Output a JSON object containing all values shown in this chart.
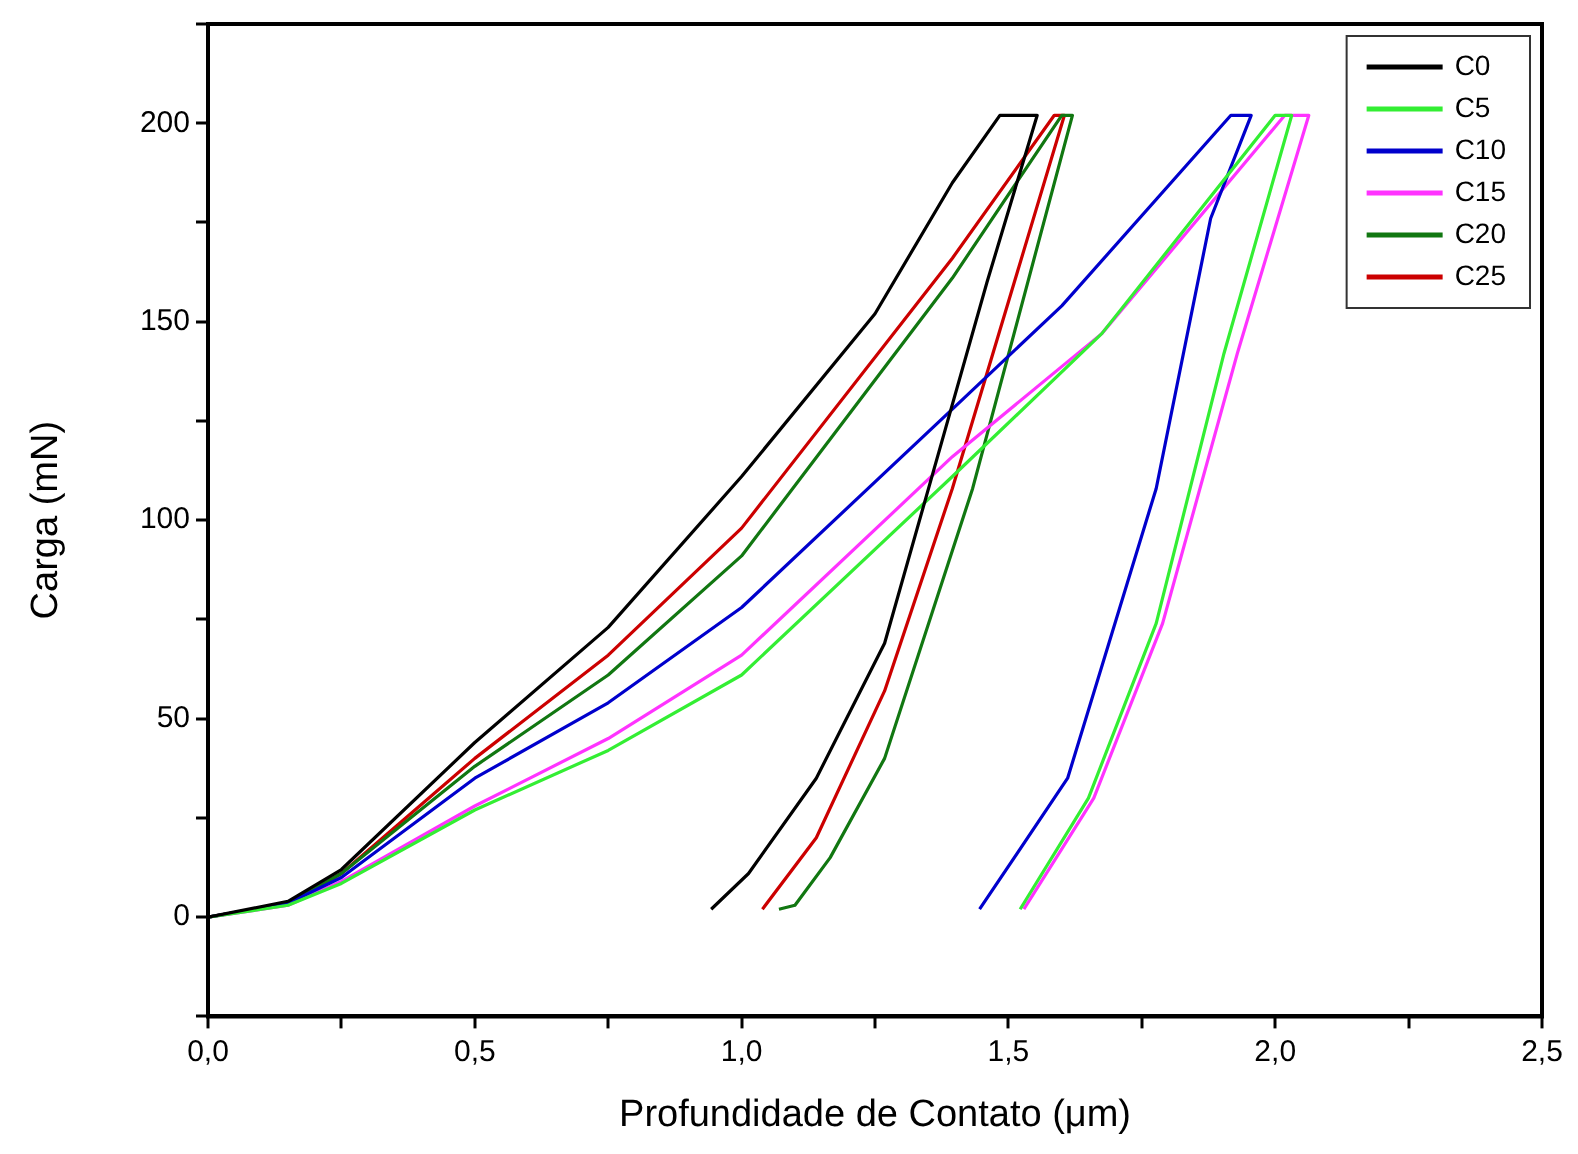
{
  "chart_data": {
    "type": "line",
    "xlabel": "Profundidade de Contato (μm)",
    "ylabel": "Carga (mN)",
    "xlim": [
      0,
      2.5
    ],
    "xticks": [
      {
        "value": 0,
        "label": "0,0"
      },
      {
        "value": 0.25,
        "label": null
      },
      {
        "value": 0.5,
        "label": "0,5"
      },
      {
        "value": 0.75,
        "label": null
      },
      {
        "value": 1,
        "label": "1,0"
      },
      {
        "value": 1.25,
        "label": null
      },
      {
        "value": 1.5,
        "label": "1,5"
      },
      {
        "value": 1.75,
        "label": null
      },
      {
        "value": 2,
        "label": "2,0"
      },
      {
        "value": 2.25,
        "label": null
      },
      {
        "value": 2.5,
        "label": "2,5"
      }
    ],
    "ylim": [
      -25,
      225
    ],
    "yticks": [
      {
        "value": -25,
        "label": null
      },
      0,
      {
        "value": 25,
        "label": null
      },
      50,
      {
        "value": 75,
        "label": null
      },
      100,
      {
        "value": 125,
        "label": null
      },
      150,
      {
        "value": 175,
        "label": null
      },
      200,
      {
        "value": 225,
        "label": null
      }
    ],
    "grid": false,
    "legend": "top right",
    "marker": "none",
    "series": [
      {
        "name": "C0",
        "color": "#000000",
        "x": [
          0,
          0.15,
          0.25,
          0.5,
          0.75,
          1.0,
          1.25,
          1.395,
          1.484,
          1.554,
          1.46,
          1.382,
          1.268,
          1.14,
          1.013,
          0.943
        ],
        "values": [
          0,
          4,
          12,
          44,
          73,
          111,
          152,
          185,
          202,
          202,
          160,
          123,
          69,
          35,
          11,
          2
        ]
      },
      {
        "name": "C5",
        "color": "#33ee33",
        "x": [
          0,
          0.15,
          0.25,
          0.5,
          0.75,
          1.0,
          1.395,
          1.675,
          2.0,
          2.031,
          1.904,
          1.777,
          1.65,
          1.522
        ],
        "values": [
          0,
          3,
          8.5,
          27,
          42,
          61,
          111,
          147,
          202,
          202,
          142,
          74,
          30,
          2
        ]
      },
      {
        "name": "C10",
        "color": "#0000cc",
        "x": [
          0,
          0.15,
          0.25,
          0.5,
          0.75,
          1.0,
          1.395,
          1.6,
          1.917,
          1.955,
          1.879,
          1.777,
          1.611,
          1.446
        ],
        "values": [
          0,
          3.5,
          10,
          35,
          54,
          78,
          128,
          154,
          202,
          202,
          176,
          108,
          35,
          2
        ]
      },
      {
        "name": "C15",
        "color": "#ff33ff",
        "x": [
          0,
          0.15,
          0.25,
          0.5,
          0.75,
          1.0,
          1.395,
          1.675,
          2.018,
          2.063,
          1.929,
          1.789,
          1.66,
          1.529
        ],
        "values": [
          0,
          3,
          9,
          28,
          45,
          66,
          116,
          147,
          202,
          202,
          142,
          74,
          30,
          2
        ]
      },
      {
        "name": "C20",
        "color": "#117711",
        "x": [
          0,
          0.15,
          0.25,
          0.5,
          0.75,
          1.0,
          1.395,
          1.6,
          1.62,
          1.433,
          1.268,
          1.166,
          1.1,
          1.07
        ],
        "values": [
          0,
          3.5,
          11,
          38,
          61,
          91,
          161,
          202,
          202,
          108,
          40,
          15,
          3,
          2
        ]
      },
      {
        "name": "C25",
        "color": "#cc0000",
        "x": [
          0,
          0.15,
          0.25,
          0.5,
          0.75,
          1.0,
          1.395,
          1.586,
          1.605,
          1.395,
          1.268,
          1.14,
          1.039
        ],
        "values": [
          0,
          3.5,
          11,
          40,
          66,
          98,
          166,
          202,
          202,
          108,
          57,
          20,
          2
        ]
      }
    ]
  }
}
